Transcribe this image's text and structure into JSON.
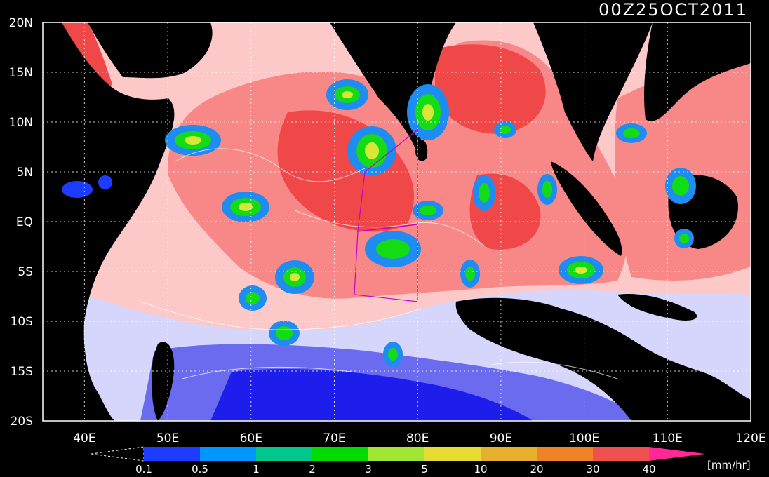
{
  "title": "00Z25OCT2011",
  "unit": "[mm/hr]",
  "map": {
    "lon_range": [
      35,
      120
    ],
    "lat_range": [
      -20,
      20
    ],
    "lon_ticks": [
      {
        "value": 40,
        "label": "40E"
      },
      {
        "value": 50,
        "label": "50E"
      },
      {
        "value": 60,
        "label": "60E"
      },
      {
        "value": 70,
        "label": "70E"
      },
      {
        "value": 80,
        "label": "80E"
      },
      {
        "value": 90,
        "label": "90E"
      },
      {
        "value": 100,
        "label": "100E"
      },
      {
        "value": 110,
        "label": "110E"
      },
      {
        "value": 120,
        "label": "120E"
      }
    ],
    "lat_ticks": [
      {
        "value": 20,
        "label": "20N"
      },
      {
        "value": 15,
        "label": "15N"
      },
      {
        "value": 10,
        "label": "10N"
      },
      {
        "value": 5,
        "label": "5N"
      },
      {
        "value": 0,
        "label": "EQ"
      },
      {
        "value": -5,
        "label": "5S"
      },
      {
        "value": -10,
        "label": "10S"
      },
      {
        "value": -15,
        "label": "15S"
      },
      {
        "value": -20,
        "label": "20S"
      }
    ],
    "grid": true,
    "colors": {
      "land": "#000000",
      "heavy": "#f04848",
      "moderate": "#f88888",
      "light": "#fcc8c8",
      "faint": "#d6d6fc",
      "low": "#6b6bf0",
      "very_low": "#1e1eec",
      "convective_green": "#14dc14",
      "convective_yellow": "#d8e638",
      "convective_blue": "#1e8cf0",
      "boxes": "#c800c8"
    }
  },
  "colorbar": {
    "levels": [
      "0.1",
      "0.5",
      "1",
      "2",
      "3",
      "5",
      "10",
      "20",
      "30",
      "40"
    ],
    "colors": [
      "#1e3cff",
      "#0096ff",
      "#00c88c",
      "#00dc00",
      "#a0e632",
      "#e6dc32",
      "#e6af2d",
      "#f08228",
      "#f05050",
      "#ff2896"
    ]
  }
}
